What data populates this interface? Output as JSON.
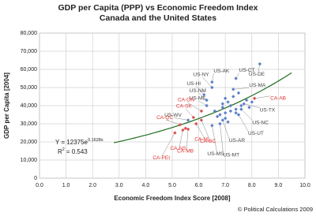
{
  "chart_data": {
    "type": "scatter",
    "title": "GDP per Capita (PPP) vs Economic Freedom Index",
    "subtitle": "Canada and the United States",
    "x_label": "Economic Freedom Index Score [2008]",
    "y_label": "GDP per Capita [2004]",
    "footer": "© Political Calculations 2009",
    "xlim": [
      0,
      10
    ],
    "ylim": [
      0,
      80000
    ],
    "xticks": [
      {
        "value": 0,
        "label": "0.0"
      },
      {
        "value": 1,
        "label": "1.0"
      },
      {
        "value": 2,
        "label": "2.0"
      },
      {
        "value": 3,
        "label": "3.0"
      },
      {
        "value": 4,
        "label": "4.0"
      },
      {
        "value": 5,
        "label": "5.0"
      },
      {
        "value": 6,
        "label": "6.0"
      },
      {
        "value": 7,
        "label": "7.0"
      },
      {
        "value": 8,
        "label": "8.0"
      },
      {
        "value": 9,
        "label": "9.0"
      },
      {
        "value": 10,
        "label": "10.0"
      }
    ],
    "yticks": [
      0,
      {
        "value": 10000,
        "label": "10,000"
      },
      {
        "value": 20000,
        "label": "20,000"
      },
      {
        "value": 30000,
        "label": "30,000"
      },
      {
        "value": 40000,
        "label": "40,000"
      },
      {
        "value": 50000,
        "label": "50,000"
      },
      {
        "value": 60000,
        "label": "60,000"
      },
      {
        "value": 70000,
        "label": "70,000"
      },
      {
        "value": 80000,
        "label": "80,000"
      }
    ],
    "grid": true,
    "series": [
      {
        "name": "United States",
        "color": "#5b7fc7",
        "label_color": "#444",
        "x": [
          8.3,
          6.5,
          7.4,
          6.5,
          7.3,
          6.2,
          6.3,
          6.3,
          5.6,
          7.7,
          7.6,
          7.5,
          6.9,
          6.5,
          6.8,
          7.0,
          7.1,
          6.9,
          7.2,
          7.4,
          7.6,
          7.8,
          6.8,
          7.0,
          7.3,
          7.5,
          6.6,
          6.7,
          7.1,
          7.9,
          8.0,
          6.9,
          7.2,
          7.4,
          7.0
        ],
        "y": [
          63000,
          53000,
          55000,
          50000,
          49000,
          46000,
          43000,
          40000,
          32000,
          41000,
          38000,
          35000,
          32000,
          29000,
          30000,
          44000,
          42000,
          39000,
          37000,
          36000,
          40000,
          43000,
          35000,
          33000,
          45000,
          47000,
          37000,
          34000,
          31000,
          39000,
          42000,
          41000,
          40000,
          38000,
          36000
        ],
        "labels": [
          "US-DE",
          "US-AK",
          "US-CT",
          "US-NY",
          "US-MA",
          "US-HI",
          "US-NM",
          "US-ME",
          "US-WV",
          "US-TX",
          "US-NC",
          "US-UT",
          "US-AR",
          "US-MS",
          "US-MT",
          null,
          null,
          null,
          null,
          null,
          null,
          null,
          null,
          null,
          null,
          null,
          null,
          null,
          null,
          null,
          null,
          null,
          null,
          null,
          null
        ]
      },
      {
        "name": "Canada",
        "color": "#d9534f",
        "label_color": "#e03030",
        "x": [
          5.1,
          5.4,
          5.6,
          5.3,
          5.9,
          6.1,
          5.8,
          6.1,
          8.1,
          5.5
        ],
        "y": [
          25000,
          26500,
          27000,
          29500,
          30000,
          32000,
          33500,
          37000,
          44000,
          27500
        ],
        "labels": [
          "CA-PEI",
          "CA-NS",
          "CA-MB",
          "CA-QC",
          "CA-NL",
          "CA-BC",
          "CA-SK",
          "CA-ON",
          "CA-AB",
          null
        ]
      }
    ],
    "fit": {
      "a": 12375,
      "b": 0.1628,
      "xrange": [
        2.8,
        9.5
      ],
      "color": "#1f6b1f"
    },
    "equation_label": "Y = 12375e",
    "equation_exponent": "0.1628x",
    "r2_label": "R",
    "r2_exponent": "2",
    "r2_value": "= 0.543"
  }
}
